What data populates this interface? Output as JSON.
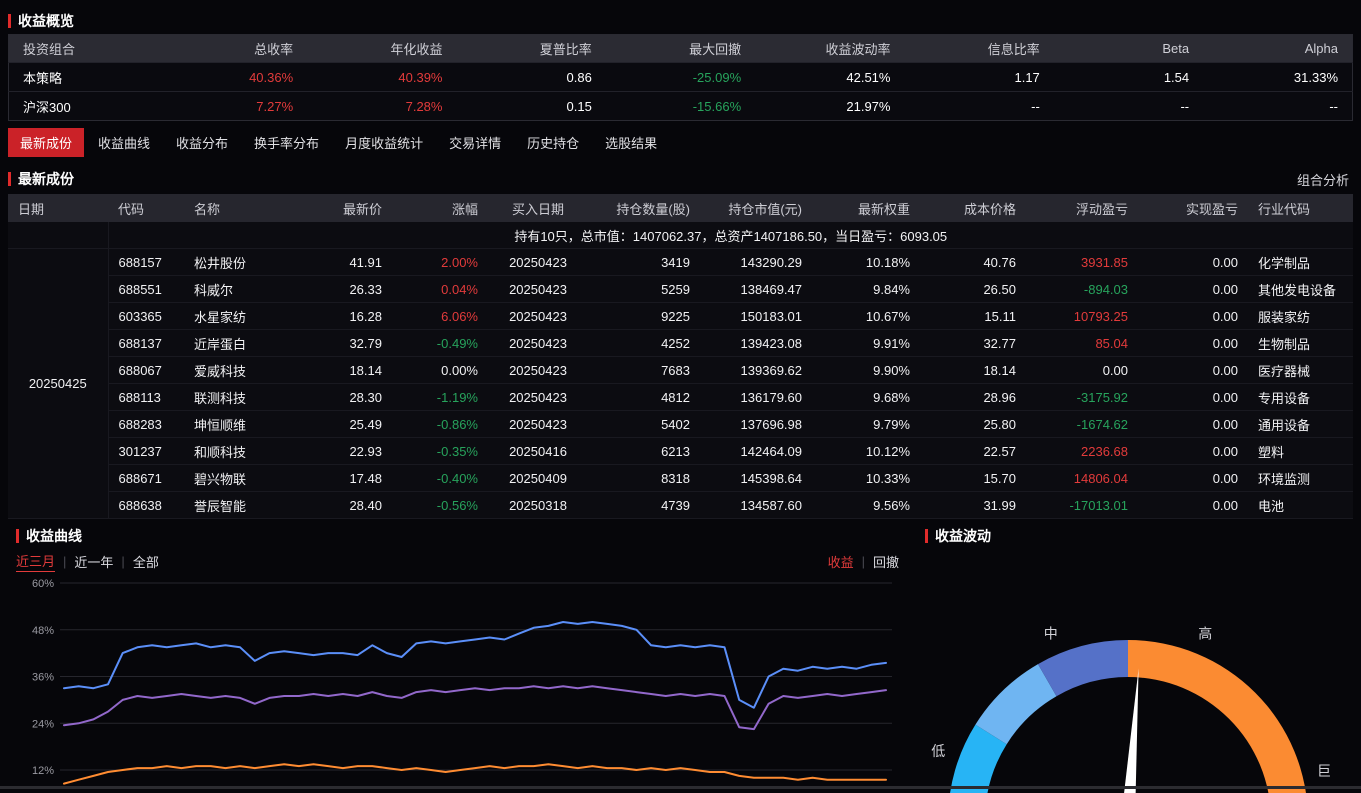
{
  "overview": {
    "title": "收益概览",
    "columns": [
      "投资组合",
      "总收率",
      "年化收益",
      "夏普比率",
      "最大回撤",
      "收益波动率",
      "信息比率",
      "Beta",
      "Alpha"
    ],
    "cell_classes": [
      "",
      "up",
      "up",
      "",
      "down",
      "",
      "",
      "",
      ""
    ],
    "rows": [
      {
        "name": "本策略",
        "cells": [
          "40.36%",
          "40.39%",
          "0.86",
          "-25.09%",
          "42.51%",
          "1.17",
          "1.54",
          "31.33%"
        ]
      },
      {
        "name": "沪深300",
        "cells": [
          "7.27%",
          "7.28%",
          "0.15",
          "-15.66%",
          "21.97%",
          "--",
          "--",
          "--"
        ]
      }
    ]
  },
  "tabs": [
    "最新成份",
    "收益曲线",
    "收益分布",
    "换手率分布",
    "月度收益统计",
    "交易详情",
    "历史持仓",
    "选股结果"
  ],
  "active_tab": "最新成份",
  "holdings": {
    "title": "最新成份",
    "link": "组合分析",
    "columns": [
      "日期",
      "代码",
      "名称",
      "最新价",
      "涨幅",
      "买入日期",
      "持仓数量(股)",
      "持仓市值(元)",
      "最新权重",
      "成本价格",
      "浮动盈亏",
      "实现盈亏",
      "行业代码"
    ],
    "header_aligns": [
      "al",
      "al",
      "al",
      "ar",
      "ar",
      "ac",
      "ar",
      "ar",
      "ar",
      "ar",
      "ar",
      "ar",
      "al"
    ],
    "aligns": [
      "al",
      "al",
      "ar",
      "ar",
      "ac",
      "ar",
      "ar",
      "ar",
      "ar",
      "ar",
      "ar",
      "al"
    ],
    "summary": "持有10只，总市值：1407062.37，总资产1407186.50，当日盈亏：6093.05",
    "date": "20250425",
    "rows": [
      [
        "688157",
        "松井股份",
        "41.91",
        "2.00%",
        "20250423",
        "3419",
        "143290.29",
        "10.18%",
        "40.76",
        "3931.85",
        "0.00",
        "化学制品"
      ],
      [
        "688551",
        "科威尔",
        "26.33",
        "0.04%",
        "20250423",
        "5259",
        "138469.47",
        "9.84%",
        "26.50",
        "-894.03",
        "0.00",
        "其他发电设备"
      ],
      [
        "603365",
        "水星家纺",
        "16.28",
        "6.06%",
        "20250423",
        "9225",
        "150183.01",
        "10.67%",
        "15.11",
        "10793.25",
        "0.00",
        "服装家纺"
      ],
      [
        "688137",
        "近岸蛋白",
        "32.79",
        "-0.49%",
        "20250423",
        "4252",
        "139423.08",
        "9.91%",
        "32.77",
        "85.04",
        "0.00",
        "生物制品"
      ],
      [
        "688067",
        "爱威科技",
        "18.14",
        "0.00%",
        "20250423",
        "7683",
        "139369.62",
        "9.90%",
        "18.14",
        "0.00",
        "0.00",
        "医疗器械"
      ],
      [
        "688113",
        "联测科技",
        "28.30",
        "-1.19%",
        "20250423",
        "4812",
        "136179.60",
        "9.68%",
        "28.96",
        "-3175.92",
        "0.00",
        "专用设备"
      ],
      [
        "688283",
        "坤恒顺维",
        "25.49",
        "-0.86%",
        "20250423",
        "5402",
        "137696.98",
        "9.79%",
        "25.80",
        "-1674.62",
        "0.00",
        "通用设备"
      ],
      [
        "301237",
        "和顺科技",
        "22.93",
        "-0.35%",
        "20250416",
        "6213",
        "142464.09",
        "10.12%",
        "22.57",
        "2236.68",
        "0.00",
        "塑料"
      ],
      [
        "688671",
        "碧兴物联",
        "17.48",
        "-0.40%",
        "20250409",
        "8318",
        "145398.64",
        "10.33%",
        "15.70",
        "14806.04",
        "0.00",
        "环境监测"
      ],
      [
        "688638",
        "誉辰智能",
        "28.40",
        "-0.56%",
        "20250318",
        "4739",
        "134587.60",
        "9.56%",
        "31.99",
        "-17013.01",
        "0.00",
        "电池"
      ]
    ]
  },
  "curve_panel": {
    "title": "收益曲线",
    "ranges": [
      "近三月",
      "近一年",
      "全部"
    ],
    "active_range": "近三月",
    "modes": [
      "收益",
      "回撤"
    ],
    "active_mode": "收益"
  },
  "volatility_panel": {
    "title": "收益波动"
  },
  "colors": {
    "up": "#e23b3b",
    "down": "#27a35c",
    "accent": "#e02b2b",
    "summary_text": "#e8502c",
    "tab_active_bg": "#cb2228",
    "line_blue": "#5b8ff9",
    "line_purple": "#9268cb",
    "line_orange": "#ff8c32"
  },
  "chart_data": [
    {
      "type": "line",
      "title": "收益曲线",
      "unit": "%",
      "y_ticks": [
        12,
        24,
        36,
        48,
        60
      ],
      "ylim": [
        7,
        62
      ],
      "grid": true,
      "series": [
        {
          "name": "blue",
          "color": "#5b8ff9",
          "values": [
            33,
            33.5,
            33,
            34,
            42,
            43.5,
            44,
            43.5,
            44,
            44.5,
            43.5,
            44,
            43.5,
            40,
            42,
            42.5,
            42,
            41.5,
            42,
            42,
            41.5,
            44,
            42,
            41,
            44.5,
            45,
            44.5,
            45,
            45.5,
            46,
            45.5,
            47,
            48.5,
            49,
            50,
            49.5,
            50,
            49.5,
            49,
            48,
            44,
            43.5,
            44,
            43.5,
            44,
            43.5,
            30,
            28,
            36,
            38,
            37.5,
            38.5,
            38,
            38.5,
            38,
            39,
            39.5
          ]
        },
        {
          "name": "purple",
          "color": "#9268cb",
          "values": [
            23.5,
            24,
            25,
            27,
            30,
            31,
            30.5,
            31,
            31.5,
            31,
            30.5,
            31,
            30.5,
            29,
            30.5,
            31,
            31,
            31.5,
            31,
            31.5,
            31,
            32,
            31,
            30.5,
            32,
            32.5,
            32,
            32.5,
            33,
            32.5,
            33,
            33,
            33.5,
            33,
            33.5,
            33,
            33.5,
            33,
            32.5,
            32,
            31.5,
            31,
            31.5,
            31,
            31.5,
            31,
            23,
            22.5,
            29,
            31,
            30.5,
            31,
            31.5,
            31,
            31.5,
            32,
            32.5
          ]
        },
        {
          "name": "orange",
          "color": "#ff8c32",
          "values": [
            8.5,
            9.5,
            10.5,
            11.5,
            12,
            12.5,
            12.5,
            13,
            12.5,
            13,
            13,
            12.5,
            13,
            12.5,
            13,
            13.5,
            13,
            13.5,
            13,
            12.5,
            13,
            13,
            12.5,
            12,
            12.5,
            12,
            11.5,
            12,
            12.5,
            13,
            12.5,
            13,
            13,
            13.5,
            13,
            12.5,
            13,
            12.5,
            12.5,
            12,
            12.5,
            12,
            12.5,
            12,
            11.5,
            11.5,
            10.5,
            10,
            10,
            10,
            9.5,
            10,
            9.5,
            9.5,
            9.5,
            9.5,
            9.5
          ]
        }
      ]
    },
    {
      "type": "gauge",
      "title": "收益波动",
      "labels": [
        {
          "text": "低",
          "angle": 160
        },
        {
          "text": "中",
          "angle": 112.5
        },
        {
          "text": "高",
          "angle": 67.5
        },
        {
          "text": "巨",
          "angle": 14
        }
      ],
      "segments": [
        {
          "from": 180,
          "to": 148,
          "color": "#27b4f5"
        },
        {
          "from": 148,
          "to": 120,
          "color": "#6fb5f2"
        },
        {
          "from": 120,
          "to": 90,
          "color": "#5571c8"
        },
        {
          "from": 90,
          "to": 0,
          "color": "#fb8b32"
        }
      ],
      "needle_angle": 86
    }
  ]
}
